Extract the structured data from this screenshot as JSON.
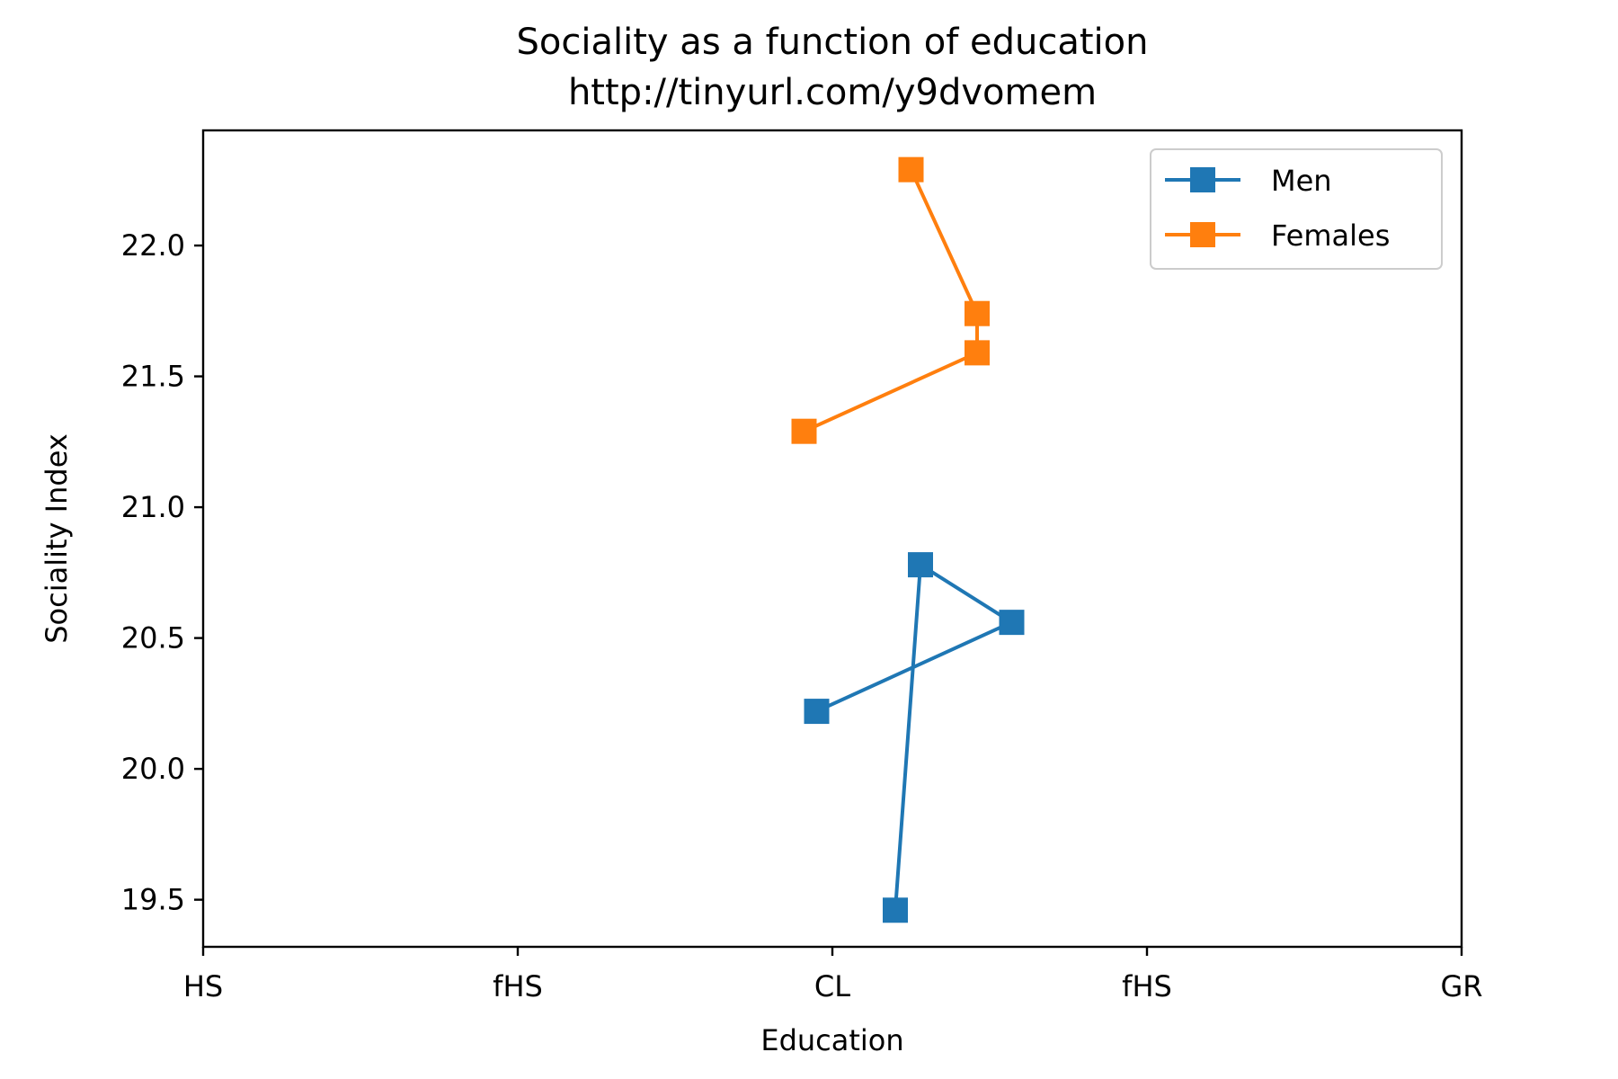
{
  "chart_data": {
    "type": "line",
    "title": "Sociality as a function of education",
    "subtitle": "http://tinyurl.com/y9dvomem",
    "xlabel": "Education",
    "ylabel": "Sociality Index",
    "xlim": [
      0,
      4
    ],
    "ylim": [
      19.32,
      22.44
    ],
    "x_ticks": [
      0,
      1,
      2,
      3,
      4
    ],
    "x_tick_labels": [
      "HS",
      "fHS",
      "CL",
      "fHS",
      "GR"
    ],
    "y_ticks": [
      19.5,
      20.0,
      20.5,
      21.0,
      21.5,
      22.0
    ],
    "y_tick_labels": [
      "19.5",
      "20.0",
      "20.5",
      "21.0",
      "21.5",
      "22.0"
    ],
    "grid": false,
    "legend_position": "top-right",
    "series": [
      {
        "name": "Men",
        "color": "#1f77b4",
        "marker": "square",
        "x": [
          1.95,
          2.57,
          2.28,
          2.2
        ],
        "y": [
          20.22,
          20.56,
          20.78,
          19.46
        ]
      },
      {
        "name": "Females",
        "color": "#ff7f0e",
        "marker": "square",
        "x": [
          1.91,
          2.46,
          2.46,
          2.25
        ],
        "y": [
          21.29,
          21.59,
          21.74,
          22.29
        ]
      }
    ]
  }
}
